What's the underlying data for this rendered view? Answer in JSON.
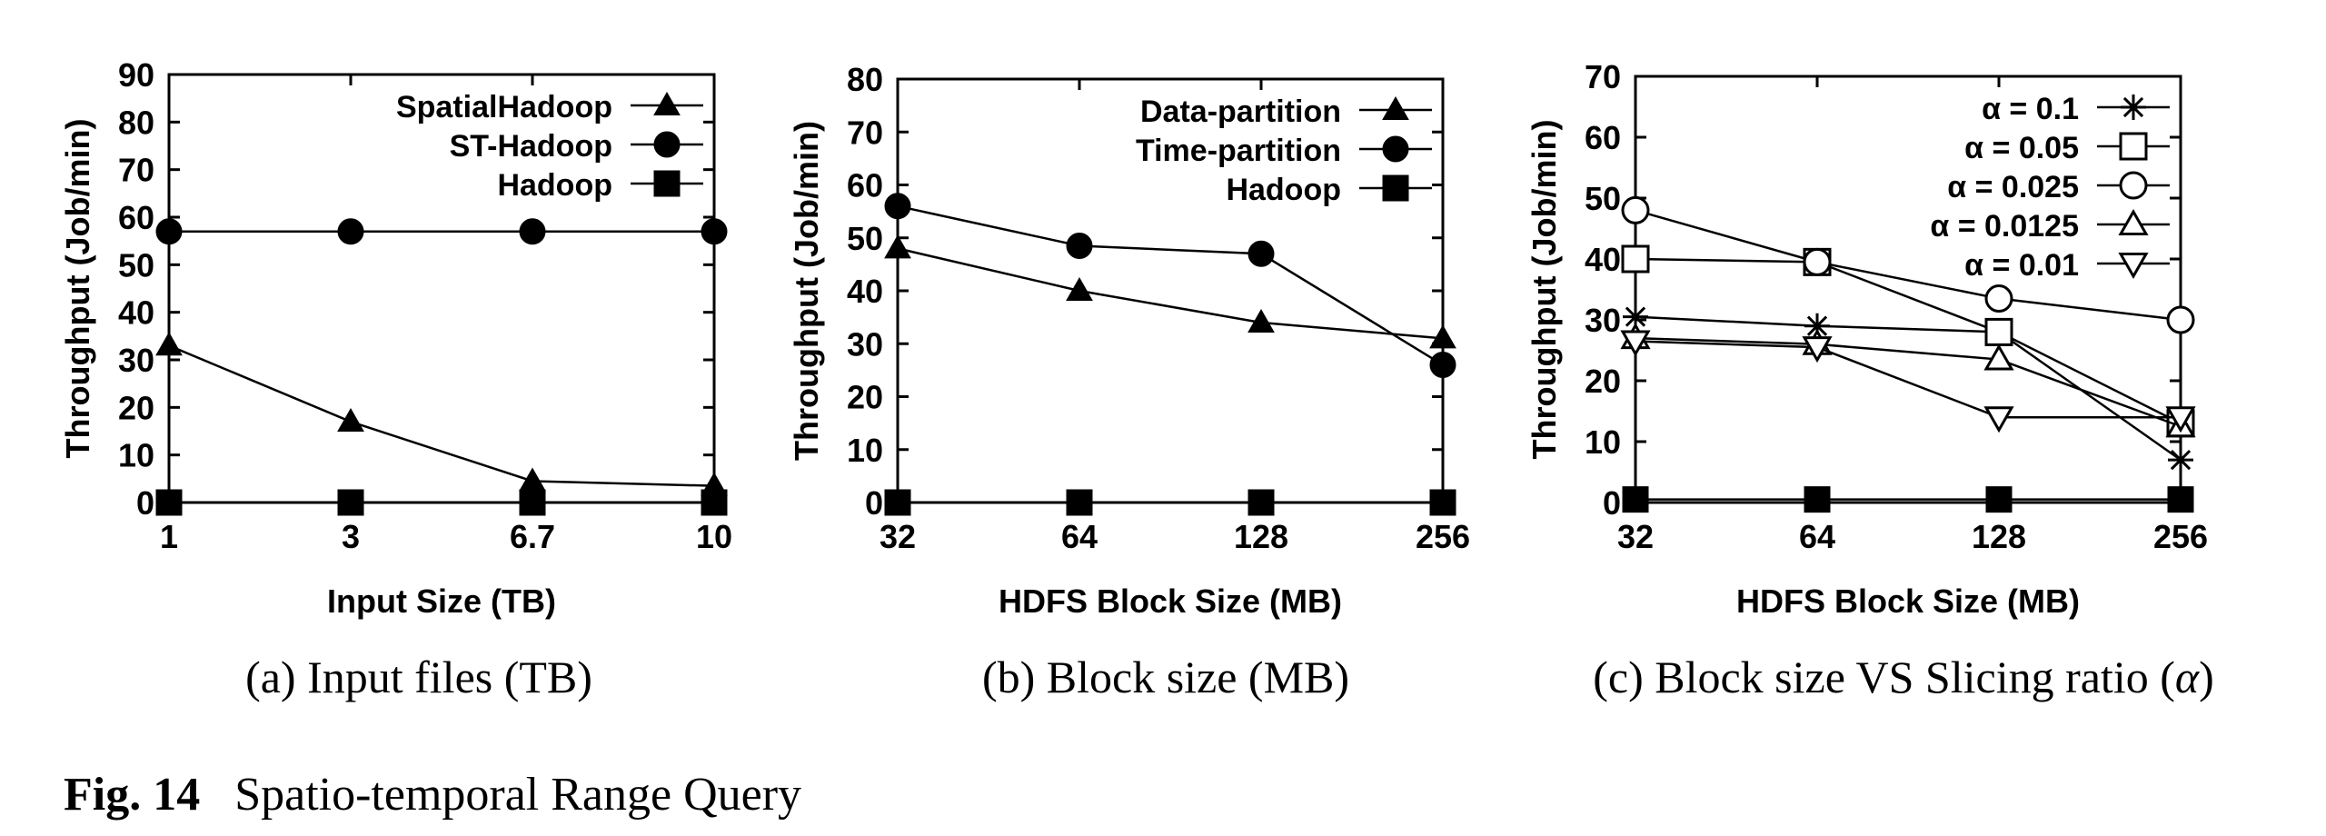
{
  "figure": {
    "label": "Fig. 14",
    "title": "Spatio-temporal Range Query"
  },
  "chart_data": [
    {
      "type": "line",
      "caption": "(a) Input files (TB)",
      "xlabel": "Input Size (TB)",
      "ylabel": "Throughput (Job/min)",
      "categories": [
        "1",
        "3",
        "6.7",
        "10"
      ],
      "ylim": [
        0,
        90
      ],
      "yticks": [
        0,
        10,
        20,
        30,
        40,
        50,
        60,
        70,
        80,
        90
      ],
      "grid": false,
      "legend_position": "top-right",
      "series": [
        {
          "name": "SpatialHadoop",
          "marker": "triangle-filled",
          "values": [
            33,
            17,
            4.5,
            3.5
          ]
        },
        {
          "name": "ST-Hadoop",
          "marker": "circle-filled",
          "values": [
            57,
            57,
            57,
            57
          ]
        },
        {
          "name": "Hadoop",
          "marker": "square-filled",
          "values": [
            0,
            0,
            0,
            0
          ]
        }
      ]
    },
    {
      "type": "line",
      "caption": "(b) Block size (MB)",
      "xlabel": "HDFS Block Size (MB)",
      "ylabel": "Throughput (Job/min)",
      "categories": [
        "32",
        "64",
        "128",
        "256"
      ],
      "ylim": [
        0,
        80
      ],
      "yticks": [
        0,
        10,
        20,
        30,
        40,
        50,
        60,
        70,
        80
      ],
      "grid": false,
      "legend_position": "top-right",
      "series": [
        {
          "name": "Data-partition",
          "marker": "triangle-filled",
          "values": [
            48,
            40,
            34,
            31
          ]
        },
        {
          "name": "Time-partition",
          "marker": "circle-filled",
          "values": [
            56,
            48.5,
            47,
            26
          ]
        },
        {
          "name": "Hadoop",
          "marker": "square-filled",
          "values": [
            0,
            0,
            0,
            0
          ]
        }
      ]
    },
    {
      "type": "line",
      "caption_prefix": "(c) Block size VS Slicing ratio (",
      "caption_symbol": "α",
      "caption_suffix": ")",
      "xlabel": "HDFS Block Size (MB)",
      "ylabel": "Throughput (Job/min)",
      "categories": [
        "32",
        "64",
        "128",
        "256"
      ],
      "ylim": [
        0,
        70
      ],
      "yticks": [
        0,
        10,
        20,
        30,
        40,
        50,
        60,
        70
      ],
      "grid": false,
      "legend_position": "top-right",
      "series": [
        {
          "name": "α = 0.1",
          "marker": "star",
          "values": [
            30.5,
            29,
            28,
            7
          ]
        },
        {
          "name": "α = 0.05",
          "marker": "square-open",
          "values": [
            40,
            39.5,
            28,
            13
          ]
        },
        {
          "name": "α = 0.025",
          "marker": "circle-open",
          "values": [
            48,
            39.5,
            33.5,
            30
          ]
        },
        {
          "name": "α = 0.0125",
          "marker": "triangle-open",
          "values": [
            27,
            26,
            23.5,
            12.5
          ]
        },
        {
          "name": "α = 0.01",
          "marker": "triangle-down-open",
          "values": [
            26.5,
            25.5,
            14,
            14
          ]
        },
        {
          "name": "",
          "marker": "square-filled",
          "values": [
            0.5,
            0.5,
            0.5,
            0.5
          ]
        }
      ]
    }
  ]
}
